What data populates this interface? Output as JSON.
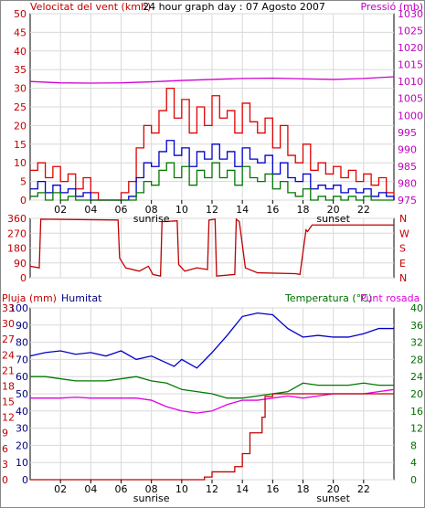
{
  "header": {
    "title": "24 hour graph day : 07 Agosto 2007",
    "left_label": "Velocitat del vent (kmh)",
    "right_label": "Pressió (mb)"
  },
  "panel3_labels": {
    "rain": "Pluja (mm)",
    "humidity": "Humitat",
    "temp": "Temperatura (°C)",
    "dew": "Punt rosada"
  },
  "hour_ticks": [
    "02",
    "04",
    "06",
    "08",
    "10",
    "12",
    "14",
    "16",
    "18",
    "20",
    "22"
  ],
  "sun_labels": {
    "sunrise": "sunrise",
    "sunset": "sunset"
  },
  "colors": {
    "wind_gust": "#e00000",
    "wind_avg": "#0000c8",
    "wind_min": "#007800",
    "pressure": "#d000d0",
    "direction": "#c00000",
    "humidity": "#0000c8",
    "temperature": "#007800",
    "dew": "#e000e0",
    "rain": "#c00000",
    "frame": "#000000",
    "left_axis_1": "#c00000",
    "right_axis_1": "#c000c0",
    "left_axis_3": "#000080",
    "right_axis_3": "#007000",
    "rain_label": "#c00000"
  },
  "chart_data": [
    {
      "type": "line",
      "name": "wind_pressure",
      "x_unit": "hour",
      "xlim": [
        0,
        24
      ],
      "left_axis": {
        "ticks": [
          0,
          5,
          10,
          15,
          20,
          25,
          30,
          35,
          40,
          45,
          50
        ],
        "ylim": [
          0,
          50
        ]
      },
      "right_axis": {
        "ticks": [
          975,
          980,
          985,
          990,
          995,
          1000,
          1005,
          1010,
          1015,
          1020,
          1025,
          1030
        ],
        "ylim": [
          975,
          1030
        ]
      },
      "series": [
        {
          "key": "gust",
          "x": [
            0,
            0.5,
            1,
            1.5,
            2,
            2.5,
            3,
            3.5,
            4,
            4.5,
            5,
            5.5,
            6,
            6.5,
            7,
            7.5,
            8,
            8.5,
            9,
            9.5,
            10,
            10.5,
            11,
            11.5,
            12,
            12.5,
            13,
            13.5,
            14,
            14.5,
            15,
            15.5,
            16,
            16.5,
            17,
            17.5,
            18,
            18.5,
            19,
            19.5,
            20,
            20.5,
            21,
            21.5,
            22,
            22.5,
            23,
            23.5,
            24
          ],
          "values": [
            8,
            10,
            6,
            9,
            5,
            7,
            3,
            6,
            2,
            0,
            0,
            0,
            2,
            5,
            14,
            20,
            18,
            24,
            30,
            22,
            27,
            18,
            25,
            20,
            28,
            22,
            24,
            18,
            26,
            21,
            18,
            22,
            14,
            20,
            12,
            10,
            15,
            8,
            10,
            7,
            9,
            6,
            8,
            5,
            7,
            4,
            6,
            2,
            0
          ]
        },
        {
          "key": "average",
          "x": [
            0,
            0.5,
            1,
            1.5,
            2,
            2.5,
            3,
            3.5,
            4,
            4.5,
            5,
            5.5,
            6,
            6.5,
            7,
            7.5,
            8,
            8.5,
            9,
            9.5,
            10,
            10.5,
            11,
            11.5,
            12,
            12.5,
            13,
            13.5,
            14,
            14.5,
            15,
            15.5,
            16,
            16.5,
            17,
            17.5,
            18,
            18.5,
            19,
            19.5,
            20,
            20.5,
            21,
            21.5,
            22,
            22.5,
            23,
            23.5,
            24
          ],
          "values": [
            3,
            5,
            2,
            4,
            2,
            3,
            1,
            2,
            0,
            0,
            0,
            0,
            0,
            1,
            6,
            10,
            9,
            13,
            16,
            12,
            14,
            9,
            13,
            11,
            15,
            11,
            13,
            9,
            14,
            11,
            10,
            12,
            7,
            10,
            6,
            5,
            7,
            3,
            4,
            3,
            4,
            2,
            3,
            2,
            3,
            1,
            2,
            1,
            0
          ]
        },
        {
          "key": "minimum",
          "x": [
            0,
            0.5,
            1,
            1.5,
            2,
            2.5,
            3,
            3.5,
            4,
            4.5,
            5,
            5.5,
            6,
            6.5,
            7,
            7.5,
            8,
            8.5,
            9,
            9.5,
            10,
            10.5,
            11,
            11.5,
            12,
            12.5,
            13,
            13.5,
            14,
            14.5,
            15,
            15.5,
            16,
            16.5,
            17,
            17.5,
            18,
            18.5,
            19,
            19.5,
            20,
            20.5,
            21,
            21.5,
            22,
            22.5,
            23,
            23.5,
            24
          ],
          "values": [
            1,
            2,
            0,
            2,
            0,
            1,
            0,
            0,
            0,
            0,
            0,
            0,
            0,
            0,
            2,
            5,
            4,
            8,
            10,
            6,
            9,
            4,
            8,
            6,
            10,
            6,
            8,
            4,
            9,
            6,
            5,
            7,
            3,
            5,
            2,
            1,
            3,
            0,
            1,
            0,
            1,
            0,
            1,
            0,
            1,
            0,
            0,
            0,
            0
          ]
        },
        {
          "key": "pressure",
          "axis": "right",
          "x": [
            0,
            2,
            4,
            6,
            8,
            10,
            12,
            14,
            16,
            18,
            20,
            22,
            24
          ],
          "values": [
            1010,
            1009.6,
            1009.5,
            1009.6,
            1009.9,
            1010.3,
            1010.6,
            1010.9,
            1011,
            1010.8,
            1010.6,
            1010.9,
            1011.4
          ]
        }
      ]
    },
    {
      "type": "line",
      "name": "wind_direction",
      "x_unit": "hour",
      "xlim": [
        0,
        24
      ],
      "yticks": [
        0,
        90,
        180,
        270,
        360
      ],
      "ylim": [
        0,
        360
      ],
      "compass_ticks": [
        "N",
        "W",
        "S",
        "E",
        "N"
      ],
      "series": [
        {
          "key": "direction",
          "x": [
            0,
            0.6,
            0.7,
            5.8,
            5.9,
            6.3,
            7.2,
            7.8,
            8.1,
            8.6,
            8.7,
            9.7,
            9.8,
            10.2,
            11.0,
            11.7,
            11.8,
            12.2,
            12.3,
            13.5,
            13.6,
            13.8,
            14.2,
            15.0,
            17.5,
            17.8,
            18.2,
            18.3,
            18.6,
            19.2,
            22.0,
            24
          ],
          "values": [
            70,
            60,
            355,
            350,
            120,
            60,
            40,
            70,
            20,
            10,
            340,
            345,
            80,
            40,
            60,
            50,
            350,
            355,
            10,
            20,
            355,
            340,
            60,
            30,
            25,
            20,
            290,
            280,
            320,
            320,
            320,
            320
          ]
        }
      ]
    },
    {
      "type": "line",
      "name": "rain_humidity_temperature",
      "x_unit": "hour",
      "xlim": [
        0,
        24
      ],
      "rain_axis": {
        "ticks": [
          0,
          3,
          6,
          9,
          12,
          15,
          18,
          21,
          24,
          27,
          30,
          33
        ],
        "ylim": [
          0,
          33
        ]
      },
      "humidity_axis": {
        "ticks": [
          0,
          10,
          20,
          30,
          40,
          50,
          60,
          70,
          80,
          90,
          100
        ],
        "ylim": [
          0,
          100
        ]
      },
      "temp_axis": {
        "ticks": [
          0,
          4,
          8,
          12,
          16,
          20,
          24,
          28,
          32,
          36,
          40
        ],
        "ylim": [
          0,
          40
        ]
      },
      "series": [
        {
          "key": "humidity",
          "axis": "humidity",
          "x": [
            0,
            1,
            2,
            3,
            4,
            5,
            6,
            7,
            8,
            9,
            9.5,
            10,
            11,
            12,
            13,
            14,
            15,
            16,
            17,
            18,
            19,
            20,
            21,
            22,
            23,
            24
          ],
          "values": [
            72,
            74,
            75,
            73,
            74,
            72,
            75,
            70,
            72,
            68,
            66,
            70,
            65,
            74,
            84,
            95,
            97,
            96,
            88,
            83,
            84,
            83,
            83,
            85,
            88,
            88
          ]
        },
        {
          "key": "temperature",
          "axis": "temp",
          "x": [
            0,
            1,
            2,
            3,
            4,
            5,
            6,
            7,
            8,
            9,
            10,
            11,
            12,
            13,
            14,
            15,
            16,
            17,
            18,
            19,
            20,
            21,
            22,
            23,
            24
          ],
          "values": [
            24,
            24,
            23.5,
            23,
            23,
            23,
            23.5,
            24,
            23,
            22.5,
            21,
            20.5,
            20,
            19,
            19,
            19.5,
            20,
            20.5,
            22.5,
            22,
            22,
            22,
            22.5,
            22,
            22
          ]
        },
        {
          "key": "dew_point",
          "axis": "temp",
          "x": [
            0,
            1,
            2,
            3,
            4,
            5,
            6,
            7,
            8,
            9,
            10,
            11,
            12,
            13,
            14,
            15,
            16,
            17,
            18,
            19,
            20,
            21,
            22,
            23,
            24
          ],
          "values": [
            19,
            19,
            19,
            19.2,
            19,
            19,
            19,
            19,
            18.5,
            17,
            16,
            15.5,
            16,
            17.5,
            18.5,
            18.5,
            19,
            19.5,
            19,
            19.5,
            20,
            20,
            20,
            20.5,
            21
          ]
        },
        {
          "key": "rain",
          "axis": "rain",
          "x": [
            0,
            11,
            11.5,
            12,
            13.5,
            14,
            14.5,
            15.3,
            15.5,
            16,
            23.5,
            24
          ],
          "values": [
            0,
            0,
            0.5,
            1.5,
            2.5,
            5,
            9,
            12,
            16,
            16.5,
            16.5,
            16.5
          ]
        }
      ]
    }
  ]
}
